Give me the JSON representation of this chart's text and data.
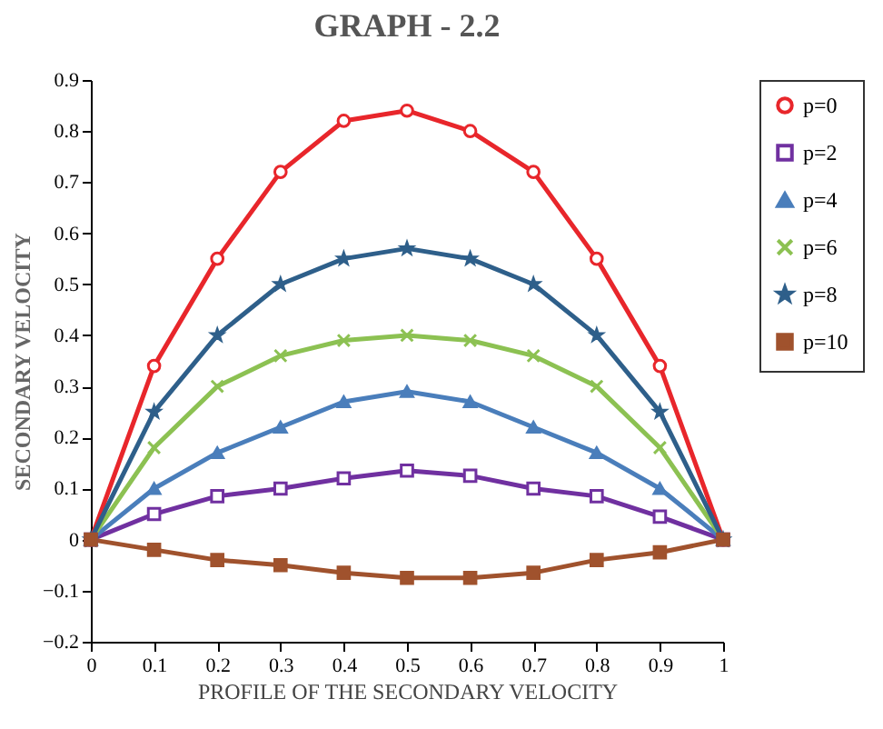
{
  "chart_data": {
    "type": "line",
    "title": "GRAPH - 2.2",
    "xlabel": "PROFILE OF THE SECONDARY VELOCITY",
    "ylabel": "SECONDARY  VELOCITY",
    "x": [
      0,
      0.1,
      0.2,
      0.3,
      0.4,
      0.5,
      0.6,
      0.7,
      0.8,
      0.9,
      1
    ],
    "series": [
      {
        "name": "p=0",
        "color": "#e8262b",
        "marker": "circle",
        "values": [
          0,
          0.34,
          0.55,
          0.72,
          0.82,
          0.84,
          0.8,
          0.72,
          0.55,
          0.34,
          0
        ]
      },
      {
        "name": "p=2",
        "color": "#7030a0",
        "marker": "square",
        "values": [
          0,
          0.05,
          0.085,
          0.1,
          0.12,
          0.135,
          0.125,
          0.1,
          0.085,
          0.045,
          0
        ]
      },
      {
        "name": "p=4",
        "color": "#4a7ebb",
        "marker": "triangle",
        "values": [
          0,
          0.1,
          0.17,
          0.22,
          0.27,
          0.29,
          0.27,
          0.22,
          0.17,
          0.1,
          0
        ]
      },
      {
        "name": "p=6",
        "color": "#8cc152",
        "marker": "cross",
        "values": [
          0,
          0.18,
          0.3,
          0.36,
          0.39,
          0.4,
          0.39,
          0.36,
          0.3,
          0.18,
          0
        ]
      },
      {
        "name": "p=8",
        "color": "#2e5f8a",
        "marker": "star",
        "values": [
          0,
          0.25,
          0.4,
          0.5,
          0.55,
          0.57,
          0.55,
          0.5,
          0.4,
          0.25,
          0
        ]
      },
      {
        "name": "p=10",
        "color": "#a0522d",
        "marker": "square",
        "values": [
          0,
          -0.02,
          -0.04,
          -0.05,
          -0.065,
          -0.075,
          -0.075,
          -0.065,
          -0.04,
          -0.025,
          0
        ]
      }
    ],
    "xlim": [
      0,
      1
    ],
    "xticks": [
      0,
      0.1,
      0.2,
      0.3,
      0.4,
      0.5,
      0.6,
      0.7,
      0.8,
      0.9,
      1
    ],
    "ylim": [
      -0.2,
      0.9
    ],
    "yticks": [
      -0.2,
      -0.1,
      0,
      0.1,
      0.2,
      0.3,
      0.4,
      0.5,
      0.6,
      0.7,
      0.8,
      0.9
    ],
    "grid": false,
    "legend": "right"
  }
}
